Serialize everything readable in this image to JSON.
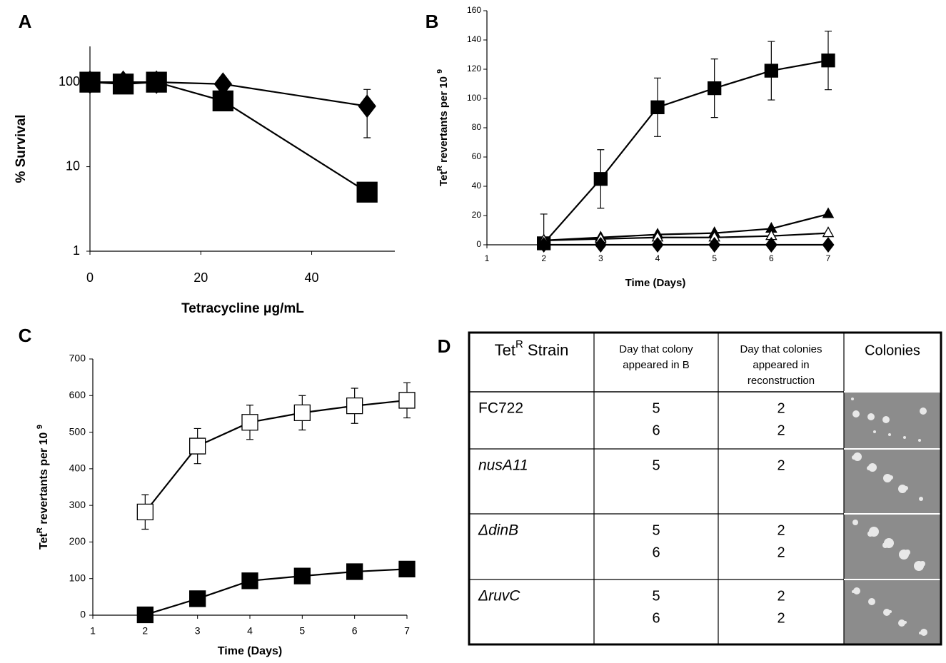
{
  "chart_data": [
    {
      "panel": "A",
      "type": "line",
      "xlabel": "Tetracycline μg/mL",
      "ylabel": [
        "% Survival"
      ],
      "yscale": "log",
      "xlim": [
        0,
        55
      ],
      "xticks": [
        0,
        20,
        40
      ],
      "ylim": [
        1,
        265
      ],
      "yticks": [
        1,
        10,
        100
      ],
      "series": [
        {
          "marker": "diamond",
          "color": "#000000",
          "marker_fill": "#000000",
          "x": [
            0,
            6,
            12,
            24,
            50
          ],
          "values": [
            100,
            100,
            100,
            95,
            52
          ],
          "errors": [
            null,
            null,
            null,
            null,
            30
          ]
        },
        {
          "marker": "square",
          "color": "#000000",
          "marker_fill": "#000000",
          "x": [
            0,
            6,
            12,
            24,
            50
          ],
          "values": [
            100,
            95,
            100,
            60,
            5
          ]
        }
      ]
    },
    {
      "panel": "B",
      "type": "line",
      "xlabel": "Time (Days)",
      "ylabel": [
        "Tet",
        "R",
        " revertants per 10 ",
        "9"
      ],
      "xlim": [
        1,
        7
      ],
      "xticks": [
        1,
        2,
        3,
        4,
        5,
        6,
        7
      ],
      "ylim": [
        0,
        160
      ],
      "yticks": [
        0,
        20,
        40,
        60,
        80,
        100,
        120,
        140,
        160
      ],
      "series": [
        {
          "marker": "square",
          "color": "#000000",
          "marker_fill": "#000000",
          "x": [
            2,
            3,
            4,
            5,
            6,
            7
          ],
          "values": [
            1,
            45,
            94,
            107,
            119,
            126
          ],
          "errors": [
            20,
            20,
            20,
            20,
            20,
            20
          ]
        },
        {
          "marker": "triangle",
          "color": "#000000",
          "marker_fill": "#000000",
          "x": [
            2,
            3,
            4,
            5,
            6,
            7
          ],
          "values": [
            3,
            5,
            7,
            8,
            11,
            21
          ]
        },
        {
          "marker": "triangle",
          "color": "#000000",
          "marker_fill": "#ffffff",
          "x": [
            2,
            3,
            4,
            5,
            6,
            7
          ],
          "values": [
            3,
            4,
            5,
            5,
            6,
            8
          ]
        },
        {
          "marker": "diamond",
          "color": "#000000",
          "marker_fill": "#000000",
          "x": [
            2,
            3,
            4,
            5,
            6,
            7
          ],
          "values": [
            0,
            0,
            0,
            0,
            0,
            0
          ]
        }
      ]
    },
    {
      "panel": "C",
      "type": "line",
      "xlabel": "Time (Days)",
      "ylabel": [
        "Tet",
        "R",
        " revertants per 10 ",
        "9"
      ],
      "xlim": [
        1,
        7
      ],
      "xticks": [
        1,
        2,
        3,
        4,
        5,
        6,
        7
      ],
      "ylim": [
        0,
        700
      ],
      "yticks": [
        0,
        100,
        200,
        300,
        400,
        500,
        600,
        700
      ],
      "series": [
        {
          "marker": "square",
          "color": "#000000",
          "marker_fill": "#ffffff",
          "x": [
            2,
            3,
            4,
            5,
            6,
            7
          ],
          "values": [
            282,
            462,
            527,
            553,
            572,
            587
          ],
          "errors": [
            47,
            48,
            47,
            47,
            48,
            48
          ]
        },
        {
          "marker": "square",
          "color": "#000000",
          "marker_fill": "#000000",
          "x": [
            2,
            3,
            4,
            5,
            6,
            7
          ],
          "values": [
            1,
            45,
            94,
            107,
            119,
            126
          ]
        }
      ]
    }
  ],
  "table": {
    "panel": "D",
    "header": [
      [
        "Tet",
        "R",
        " Strain"
      ],
      [
        "Day that colony",
        "appeared in B"
      ],
      [
        "Day that colonies",
        "appeared in",
        "reconstruction"
      ],
      [
        "Colonies"
      ]
    ],
    "rows": [
      {
        "strain": "FC722",
        "italic": false,
        "day_b": [
          5,
          6
        ],
        "day_recon": [
          2,
          2
        ]
      },
      {
        "strain": "nusA11",
        "italic": true,
        "day_b": [
          5
        ],
        "day_recon": [
          2
        ]
      },
      {
        "strain": "ΔdinB",
        "italic": true,
        "day_b": [
          5,
          6
        ],
        "day_recon": [
          2,
          2
        ]
      },
      {
        "strain": "ΔruvC",
        "italic": true,
        "day_b": [
          5,
          6
        ],
        "day_recon": [
          2,
          2
        ]
      }
    ]
  }
}
